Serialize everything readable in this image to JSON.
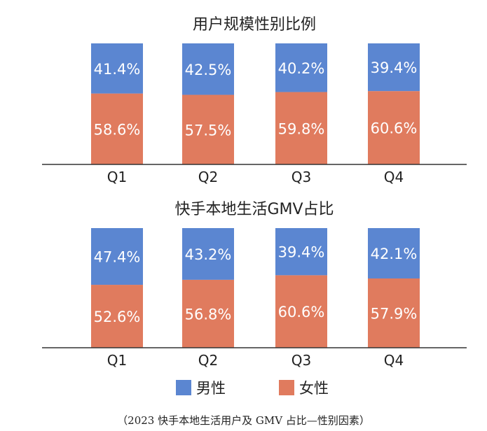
{
  "chart_data": [
    {
      "type": "bar",
      "stacked": true,
      "title": "用户规模性别比例",
      "categories": [
        "Q1",
        "Q2",
        "Q3",
        "Q4"
      ],
      "series": [
        {
          "name": "男性",
          "values": [
            41.4,
            42.5,
            40.2,
            39.4
          ],
          "labels": [
            "41.4%",
            "42.5%",
            "40.2%",
            "39.4%"
          ]
        },
        {
          "name": "女性",
          "values": [
            58.6,
            57.5,
            59.8,
            60.6
          ],
          "labels": [
            "58.6%",
            "57.5%",
            "59.8%",
            "60.6%"
          ]
        }
      ],
      "ylim": [
        0,
        100
      ]
    },
    {
      "type": "bar",
      "stacked": true,
      "title": "快手本地生活GMV占比",
      "categories": [
        "Q1",
        "Q2",
        "Q3",
        "Q4"
      ],
      "series": [
        {
          "name": "男性",
          "values": [
            47.4,
            43.2,
            39.4,
            42.1
          ],
          "labels": [
            "47.4%",
            "43.2%",
            "39.4%",
            "42.1%"
          ]
        },
        {
          "name": "女性",
          "values": [
            52.6,
            56.8,
            60.6,
            57.9
          ],
          "labels": [
            "52.6%",
            "56.8%",
            "60.6%",
            "57.9%"
          ]
        }
      ],
      "ylim": [
        0,
        100
      ]
    }
  ],
  "legend": {
    "placement": "bottom",
    "items": [
      {
        "label": "男性",
        "color": "#5b86d1"
      },
      {
        "label": "女性",
        "color": "#e07b5e"
      }
    ]
  },
  "colors": {
    "male": "#5b86d1",
    "female": "#e07b5e",
    "axis": "#333333",
    "label_text": "#ffffff"
  },
  "caption": "（2023 快手本地生活用户及 GMV 占比—性别因素）"
}
